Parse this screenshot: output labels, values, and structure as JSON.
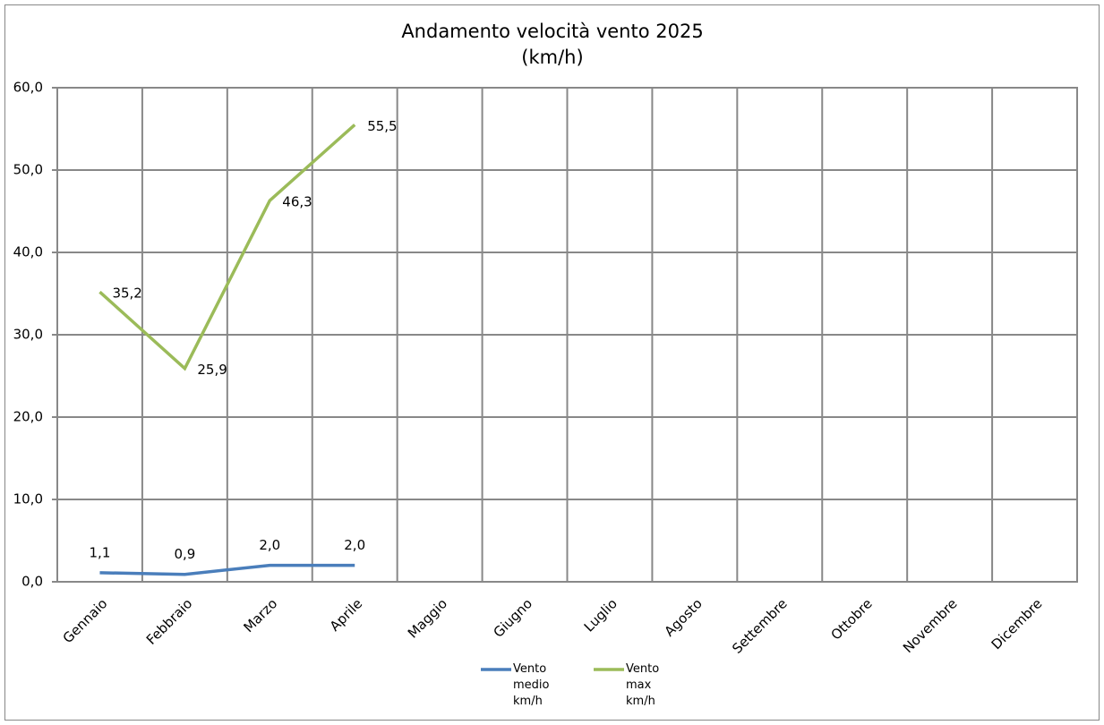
{
  "chart_data": {
    "type": "line",
    "title": "Andamento velocità vento 2025",
    "subtitle": "(km/h)",
    "categories": [
      "Gennaio",
      "Febbraio",
      "Marzo",
      "Aprile",
      "Maggio",
      "Giugno",
      "Luglio",
      "Agosto",
      "Settembre",
      "Ottobre",
      "Novembre",
      "Dicembre"
    ],
    "series": [
      {
        "name": "Vento medio km/h",
        "color": "#4a7ebb",
        "values": [
          1.1,
          0.9,
          2.0,
          2.0,
          null,
          null,
          null,
          null,
          null,
          null,
          null,
          null
        ],
        "value_labels": [
          "1,1",
          "0,9",
          "2,0",
          "2,0",
          null,
          null,
          null,
          null,
          null,
          null,
          null,
          null
        ]
      },
      {
        "name": "Vento max km/h",
        "color": "#9bbb59",
        "values": [
          35.2,
          25.9,
          46.3,
          55.5,
          null,
          null,
          null,
          null,
          null,
          null,
          null,
          null
        ],
        "value_labels": [
          "35,2",
          "25,9",
          "46,3",
          "55,5",
          null,
          null,
          null,
          null,
          null,
          null,
          null,
          null
        ]
      }
    ],
    "ylim": [
      0,
      60
    ],
    "yticks": [
      {
        "value": 0,
        "label": "0,0"
      },
      {
        "value": 10,
        "label": "10,0"
      },
      {
        "value": 20,
        "label": "20,0"
      },
      {
        "value": 30,
        "label": "30,0"
      },
      {
        "value": 40,
        "label": "40,0"
      },
      {
        "value": 50,
        "label": "50,0"
      },
      {
        "value": 60,
        "label": "60,0"
      }
    ],
    "grid": true,
    "legend": "bottom"
  }
}
